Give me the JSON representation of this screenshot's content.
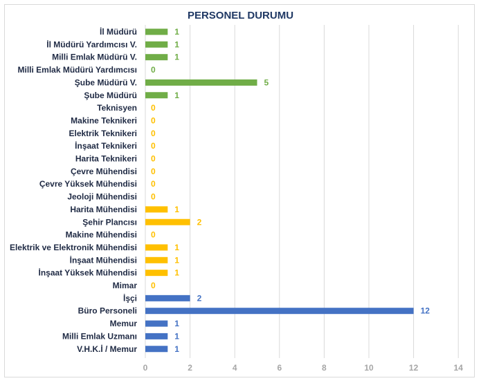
{
  "chart_data": {
    "type": "bar",
    "orientation": "horizontal",
    "title": "PERSONEL DURUMU",
    "xlabel": "",
    "ylabel": "",
    "xlim": [
      0,
      14
    ],
    "x_ticks": [
      "0",
      "2",
      "4",
      "6",
      "8",
      "10",
      "12",
      "14"
    ],
    "grid": "vertical",
    "legend": "none",
    "categories": [
      "İl Müdürü",
      "İl Müdürü Yardımcısı V.",
      "Milli Emlak Müdürü V.",
      "Milli Emlak Müdürü Yardımcısı",
      "Şube Müdürü V.",
      "Şube Müdürü",
      "Teknisyen",
      "Makine Teknikeri",
      "Elektrik Teknikeri",
      "İnşaat Teknikeri",
      "Harita Teknikeri",
      "Çevre Mühendisi",
      "Çevre Yüksek Mühendisi",
      "Jeoloji Mühendisi",
      "Harita Mühendisi",
      "Şehir Plancısı",
      "Makine Mühendisi",
      "Elektrik ve Elektronik Mühendisi",
      "İnşaat Mühendisi",
      "İnşaat Yüksek Mühendisi",
      "Mimar",
      "İşçi",
      "Büro Personeli",
      "Memur",
      "Milli Emlak Uzmanı",
      "V.H.K.İ / Memur"
    ],
    "values": [
      1,
      1,
      1,
      0,
      5,
      1,
      0,
      0,
      0,
      0,
      0,
      0,
      0,
      0,
      1,
      2,
      0,
      1,
      1,
      1,
      0,
      2,
      12,
      1,
      1,
      1
    ],
    "color_groups": [
      "green",
      "green",
      "green",
      "green",
      "green",
      "green",
      "yellow",
      "yellow",
      "yellow",
      "yellow",
      "yellow",
      "yellow",
      "yellow",
      "yellow",
      "yellow",
      "yellow",
      "yellow",
      "yellow",
      "yellow",
      "yellow",
      "yellow",
      "blue",
      "blue",
      "blue",
      "blue",
      "blue"
    ],
    "colors": {
      "green": "#70ad47",
      "yellow": "#ffc000",
      "blue": "#4472c4"
    }
  }
}
